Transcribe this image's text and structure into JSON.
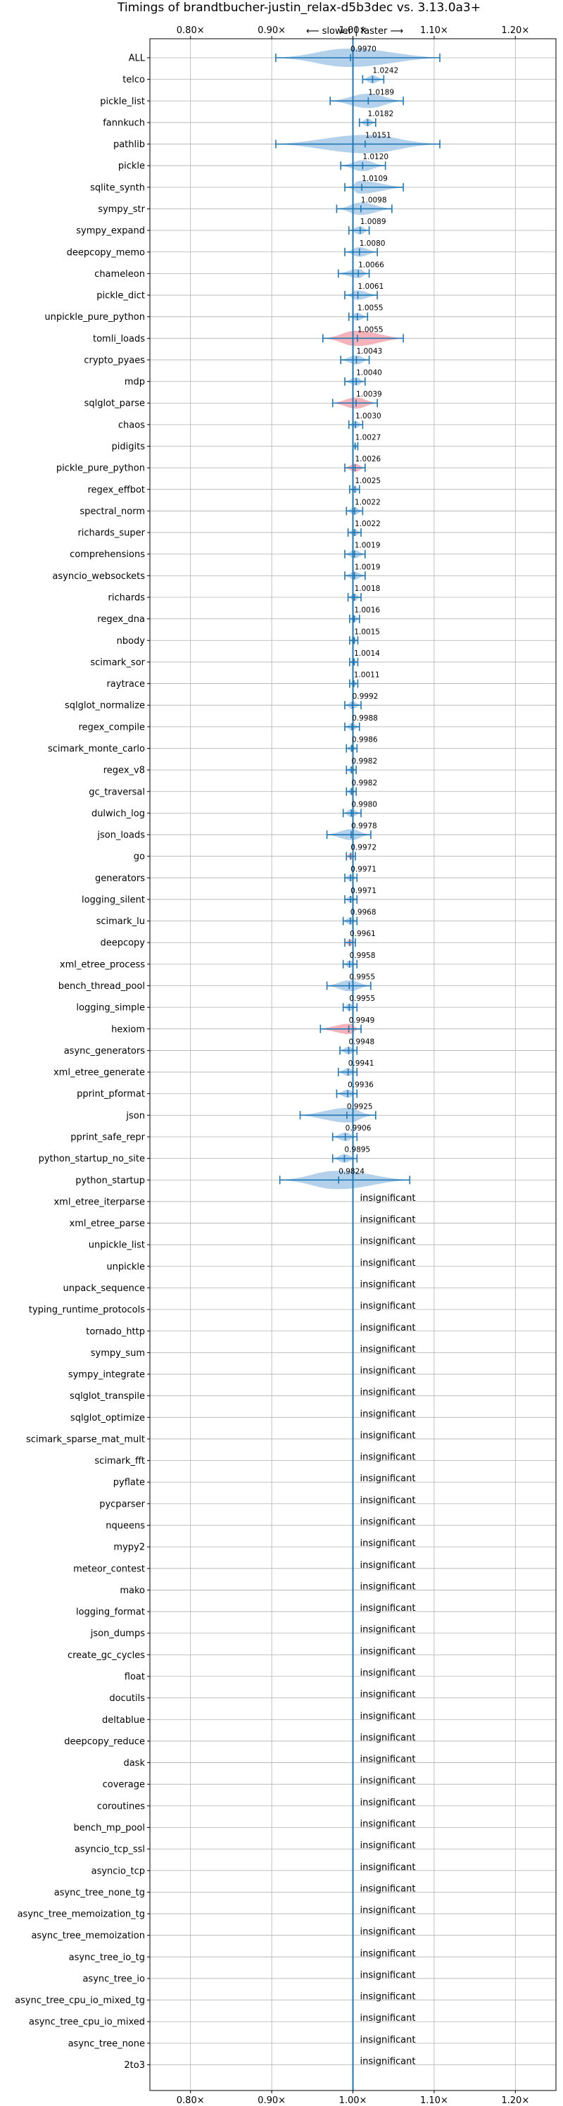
{
  "chart_data": {
    "type": "violin",
    "title": "Timings of brandtbucher-justin_relax-d5b3dec vs. 3.13.0a3+",
    "direction_note": "⟵ slower | faster ⟶",
    "xlim": [
      0.75,
      1.25
    ],
    "x_ticks": [
      0.8,
      0.9,
      1.0,
      1.1,
      1.2
    ],
    "x_tick_labels": [
      "0.80×",
      "0.90×",
      "1.00×",
      "1.10×",
      "1.20×"
    ],
    "grid": true,
    "reference_line": 1.0,
    "colors": {
      "faster": "#a7c9e8",
      "slower": "#f4a5ad",
      "line": "#1f77b4"
    },
    "insignificant_label": "insignificant",
    "benchmarks": [
      {
        "name": "ALL",
        "mean": 0.997,
        "label": "0.9970",
        "min": 0.905,
        "max": 1.107,
        "color": "faster"
      },
      {
        "name": "telco",
        "mean": 1.0242,
        "label": "1.0242",
        "min": 1.012,
        "max": 1.038,
        "color": "faster"
      },
      {
        "name": "pickle_list",
        "mean": 1.0189,
        "label": "1.0189",
        "min": 0.972,
        "max": 1.062,
        "color": "faster"
      },
      {
        "name": "fannkuch",
        "mean": 1.0182,
        "label": "1.0182",
        "min": 1.008,
        "max": 1.028,
        "color": "faster"
      },
      {
        "name": "pathlib",
        "mean": 1.0151,
        "label": "1.0151",
        "min": 0.905,
        "max": 1.107,
        "color": "faster"
      },
      {
        "name": "pickle",
        "mean": 1.012,
        "label": "1.0120",
        "min": 0.985,
        "max": 1.04,
        "color": "faster"
      },
      {
        "name": "sqlite_synth",
        "mean": 1.0109,
        "label": "1.0109",
        "min": 0.99,
        "max": 1.062,
        "color": "faster"
      },
      {
        "name": "sympy_str",
        "mean": 1.0098,
        "label": "1.0098",
        "min": 0.98,
        "max": 1.048,
        "color": "faster"
      },
      {
        "name": "sympy_expand",
        "mean": 1.0089,
        "label": "1.0089",
        "min": 0.995,
        "max": 1.02,
        "color": "faster"
      },
      {
        "name": "deepcopy_memo",
        "mean": 1.008,
        "label": "1.0080",
        "min": 0.99,
        "max": 1.03,
        "color": "faster"
      },
      {
        "name": "chameleon",
        "mean": 1.0066,
        "label": "1.0066",
        "min": 0.982,
        "max": 1.02,
        "color": "faster"
      },
      {
        "name": "pickle_dict",
        "mean": 1.0061,
        "label": "1.0061",
        "min": 0.99,
        "max": 1.03,
        "color": "faster"
      },
      {
        "name": "unpickle_pure_python",
        "mean": 1.0055,
        "label": "1.0055",
        "min": 0.995,
        "max": 1.018,
        "color": "faster"
      },
      {
        "name": "tomli_loads",
        "mean": 1.0055,
        "label": "1.0055",
        "min": 0.963,
        "max": 1.062,
        "color": "slower"
      },
      {
        "name": "crypto_pyaes",
        "mean": 1.0043,
        "label": "1.0043",
        "min": 0.985,
        "max": 1.02,
        "color": "faster"
      },
      {
        "name": "mdp",
        "mean": 1.004,
        "label": "1.0040",
        "min": 0.99,
        "max": 1.015,
        "color": "faster"
      },
      {
        "name": "sqlglot_parse",
        "mean": 1.0039,
        "label": "1.0039",
        "min": 0.975,
        "max": 1.03,
        "color": "slower"
      },
      {
        "name": "chaos",
        "mean": 1.003,
        "label": "1.0030",
        "min": 0.995,
        "max": 1.012,
        "color": "faster"
      },
      {
        "name": "pidigits",
        "mean": 1.0027,
        "label": "1.0027",
        "min": 1.0,
        "max": 1.006,
        "color": "faster"
      },
      {
        "name": "pickle_pure_python",
        "mean": 1.0026,
        "label": "1.0026",
        "min": 0.99,
        "max": 1.015,
        "color": "slower"
      },
      {
        "name": "regex_effbot",
        "mean": 1.0025,
        "label": "1.0025",
        "min": 0.996,
        "max": 1.008,
        "color": "faster"
      },
      {
        "name": "spectral_norm",
        "mean": 1.0022,
        "label": "1.0022",
        "min": 0.992,
        "max": 1.012,
        "color": "faster"
      },
      {
        "name": "richards_super",
        "mean": 1.0022,
        "label": "1.0022",
        "min": 0.994,
        "max": 1.01,
        "color": "faster"
      },
      {
        "name": "comprehensions",
        "mean": 1.0019,
        "label": "1.0019",
        "min": 0.99,
        "max": 1.015,
        "color": "faster"
      },
      {
        "name": "asyncio_websockets",
        "mean": 1.0019,
        "label": "1.0019",
        "min": 0.99,
        "max": 1.015,
        "color": "faster"
      },
      {
        "name": "richards",
        "mean": 1.0018,
        "label": "1.0018",
        "min": 0.994,
        "max": 1.01,
        "color": "faster"
      },
      {
        "name": "regex_dna",
        "mean": 1.0016,
        "label": "1.0016",
        "min": 0.996,
        "max": 1.008,
        "color": "faster"
      },
      {
        "name": "nbody",
        "mean": 1.0015,
        "label": "1.0015",
        "min": 0.996,
        "max": 1.006,
        "color": "faster"
      },
      {
        "name": "scimark_sor",
        "mean": 1.0014,
        "label": "1.0014",
        "min": 0.996,
        "max": 1.006,
        "color": "faster"
      },
      {
        "name": "raytrace",
        "mean": 1.0011,
        "label": "1.0011",
        "min": 0.996,
        "max": 1.006,
        "color": "faster"
      },
      {
        "name": "sqlglot_normalize",
        "mean": 0.9992,
        "label": "0.9992",
        "min": 0.99,
        "max": 1.01,
        "color": "faster"
      },
      {
        "name": "regex_compile",
        "mean": 0.9988,
        "label": "0.9988",
        "min": 0.99,
        "max": 1.008,
        "color": "faster"
      },
      {
        "name": "scimark_monte_carlo",
        "mean": 0.9986,
        "label": "0.9986",
        "min": 0.992,
        "max": 1.005,
        "color": "faster"
      },
      {
        "name": "regex_v8",
        "mean": 0.9982,
        "label": "0.9982",
        "min": 0.992,
        "max": 1.004,
        "color": "faster"
      },
      {
        "name": "gc_traversal",
        "mean": 0.9982,
        "label": "0.9982",
        "min": 0.992,
        "max": 1.004,
        "color": "faster"
      },
      {
        "name": "dulwich_log",
        "mean": 0.998,
        "label": "0.9980",
        "min": 0.988,
        "max": 1.01,
        "color": "faster"
      },
      {
        "name": "json_loads",
        "mean": 0.9978,
        "label": "0.9978",
        "min": 0.968,
        "max": 1.022,
        "color": "faster"
      },
      {
        "name": "go",
        "mean": 0.9972,
        "label": "0.9972",
        "min": 0.992,
        "max": 1.003,
        "color": "slower"
      },
      {
        "name": "generators",
        "mean": 0.9971,
        "label": "0.9971",
        "min": 0.99,
        "max": 1.005,
        "color": "faster"
      },
      {
        "name": "logging_silent",
        "mean": 0.9971,
        "label": "0.9971",
        "min": 0.99,
        "max": 1.005,
        "color": "faster"
      },
      {
        "name": "scimark_lu",
        "mean": 0.9968,
        "label": "0.9968",
        "min": 0.988,
        "max": 1.005,
        "color": "faster"
      },
      {
        "name": "deepcopy",
        "mean": 0.9961,
        "label": "0.9961",
        "min": 0.99,
        "max": 1.003,
        "color": "slower"
      },
      {
        "name": "xml_etree_process",
        "mean": 0.9958,
        "label": "0.9958",
        "min": 0.988,
        "max": 1.005,
        "color": "faster"
      },
      {
        "name": "bench_thread_pool",
        "mean": 0.9955,
        "label": "0.9955",
        "min": 0.968,
        "max": 1.022,
        "color": "faster"
      },
      {
        "name": "logging_simple",
        "mean": 0.9955,
        "label": "0.9955",
        "min": 0.988,
        "max": 1.005,
        "color": "faster"
      },
      {
        "name": "hexiom",
        "mean": 0.9949,
        "label": "0.9949",
        "min": 0.96,
        "max": 1.01,
        "color": "slower"
      },
      {
        "name": "async_generators",
        "mean": 0.9948,
        "label": "0.9948",
        "min": 0.984,
        "max": 1.005,
        "color": "faster"
      },
      {
        "name": "xml_etree_generate",
        "mean": 0.9941,
        "label": "0.9941",
        "min": 0.982,
        "max": 1.005,
        "color": "faster"
      },
      {
        "name": "pprint_pformat",
        "mean": 0.9936,
        "label": "0.9936",
        "min": 0.98,
        "max": 1.005,
        "color": "faster"
      },
      {
        "name": "json",
        "mean": 0.9925,
        "label": "0.9925",
        "min": 0.935,
        "max": 1.028,
        "color": "faster"
      },
      {
        "name": "pprint_safe_repr",
        "mean": 0.9906,
        "label": "0.9906",
        "min": 0.975,
        "max": 1.005,
        "color": "faster"
      },
      {
        "name": "python_startup_no_site",
        "mean": 0.9895,
        "label": "0.9895",
        "min": 0.975,
        "max": 1.005,
        "color": "faster"
      },
      {
        "name": "python_startup",
        "mean": 0.9824,
        "label": "0.9824",
        "min": 0.91,
        "max": 1.07,
        "color": "faster"
      },
      {
        "name": "xml_etree_iterparse",
        "insignificant": true
      },
      {
        "name": "xml_etree_parse",
        "insignificant": true
      },
      {
        "name": "unpickle_list",
        "insignificant": true
      },
      {
        "name": "unpickle",
        "insignificant": true
      },
      {
        "name": "unpack_sequence",
        "insignificant": true
      },
      {
        "name": "typing_runtime_protocols",
        "insignificant": true
      },
      {
        "name": "tornado_http",
        "insignificant": true
      },
      {
        "name": "sympy_sum",
        "insignificant": true
      },
      {
        "name": "sympy_integrate",
        "insignificant": true
      },
      {
        "name": "sqlglot_transpile",
        "insignificant": true
      },
      {
        "name": "sqlglot_optimize",
        "insignificant": true
      },
      {
        "name": "scimark_sparse_mat_mult",
        "insignificant": true
      },
      {
        "name": "scimark_fft",
        "insignificant": true
      },
      {
        "name": "pyflate",
        "insignificant": true
      },
      {
        "name": "pycparser",
        "insignificant": true
      },
      {
        "name": "nqueens",
        "insignificant": true
      },
      {
        "name": "mypy2",
        "insignificant": true
      },
      {
        "name": "meteor_contest",
        "insignificant": true
      },
      {
        "name": "mako",
        "insignificant": true
      },
      {
        "name": "logging_format",
        "insignificant": true
      },
      {
        "name": "json_dumps",
        "insignificant": true
      },
      {
        "name": "create_gc_cycles",
        "insignificant": true
      },
      {
        "name": "float",
        "insignificant": true
      },
      {
        "name": "docutils",
        "insignificant": true
      },
      {
        "name": "deltablue",
        "insignificant": true
      },
      {
        "name": "deepcopy_reduce",
        "insignificant": true
      },
      {
        "name": "dask",
        "insignificant": true
      },
      {
        "name": "coverage",
        "insignificant": true
      },
      {
        "name": "coroutines",
        "insignificant": true
      },
      {
        "name": "bench_mp_pool",
        "insignificant": true
      },
      {
        "name": "asyncio_tcp_ssl",
        "insignificant": true
      },
      {
        "name": "asyncio_tcp",
        "insignificant": true
      },
      {
        "name": "async_tree_none_tg",
        "insignificant": true
      },
      {
        "name": "async_tree_memoization_tg",
        "insignificant": true
      },
      {
        "name": "async_tree_memoization",
        "insignificant": true
      },
      {
        "name": "async_tree_io_tg",
        "insignificant": true
      },
      {
        "name": "async_tree_io",
        "insignificant": true
      },
      {
        "name": "async_tree_cpu_io_mixed_tg",
        "insignificant": true
      },
      {
        "name": "async_tree_cpu_io_mixed",
        "insignificant": true
      },
      {
        "name": "async_tree_none",
        "insignificant": true
      },
      {
        "name": "2to3",
        "insignificant": true
      }
    ]
  }
}
